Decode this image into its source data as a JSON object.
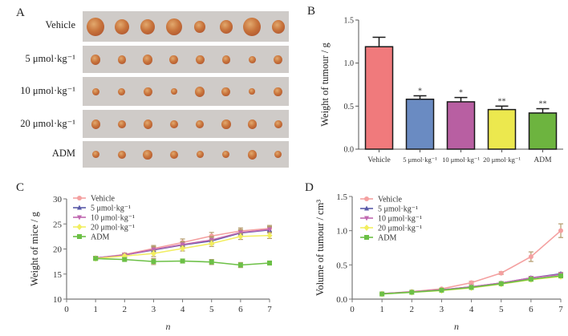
{
  "panels": {
    "A": {
      "letter": "A",
      "rows": [
        {
          "label": "Vehicle",
          "count": 8
        },
        {
          "label": "5 μmol·kg⁻¹",
          "count": 8
        },
        {
          "label": "10 μmol·kg⁻¹",
          "count": 8
        },
        {
          "label": "20 μmol·kg⁻¹",
          "count": 8
        },
        {
          "label": "ADM",
          "count": 8
        }
      ]
    },
    "B": {
      "letter": "B"
    },
    "C": {
      "letter": "C"
    },
    "D": {
      "letter": "D"
    }
  },
  "colors": {
    "vehicle": "#f07a7c",
    "dose5": "#6a8bc2",
    "dose10": "#b85fa2",
    "dose20": "#ece84e",
    "adm": "#6db43f",
    "line_vehicle": "#f4a0a0",
    "line_dose5": "#5a5aa8",
    "line_dose10": "#c068b0",
    "line_dose20": "#f2ee60",
    "line_adm": "#6cc046",
    "errbar": "#b39a6a"
  },
  "chart_data": [
    {
      "id": "B",
      "type": "bar",
      "title": "",
      "xlabel": "",
      "ylabel": "Weight of tumour / g",
      "ylim": [
        0,
        1.5
      ],
      "yticks": [
        "0.0",
        "0.5",
        "1.0",
        "1.5"
      ],
      "ytick_values": [
        0,
        0.5,
        1.0,
        1.5
      ],
      "categories": [
        "Vehicle",
        "5 μmol·kg⁻¹",
        "10 μmol·kg⁻¹",
        "20 μmol·kg⁻¹",
        "ADM"
      ],
      "values": [
        1.19,
        0.58,
        0.55,
        0.46,
        0.42
      ],
      "errors": [
        0.11,
        0.04,
        0.05,
        0.04,
        0.05
      ],
      "significance": [
        "",
        "*",
        "*",
        "**",
        "**"
      ],
      "grid": false
    },
    {
      "id": "C",
      "type": "line",
      "xlabel": "n",
      "ylabel": "Weight of mice / g",
      "xlim": [
        0,
        7
      ],
      "ylim": [
        10,
        30
      ],
      "xticks": [
        "0",
        "1",
        "2",
        "3",
        "4",
        "5",
        "6",
        "7"
      ],
      "yticks": [
        "10",
        "15",
        "20",
        "25",
        "30"
      ],
      "ytick_values": [
        10,
        15,
        20,
        25,
        30
      ],
      "x": [
        1,
        2,
        3,
        4,
        5,
        6,
        7
      ],
      "legend_position": "top-left",
      "series": [
        {
          "name": "Vehicle",
          "marker": "circle",
          "values": [
            18.2,
            18.9,
            20.1,
            21.3,
            22.6,
            23.6,
            24.1
          ],
          "errors": [
            0.3,
            0.3,
            0.6,
            0.7,
            0.7,
            0.6,
            0.6
          ]
        },
        {
          "name": "5 μmol·kg⁻¹",
          "marker": "triangle-up",
          "values": [
            18.2,
            18.8,
            19.8,
            20.8,
            21.6,
            23.2,
            23.8
          ],
          "errors": [
            0.3,
            0.3,
            0.6,
            0.6,
            0.7,
            0.6,
            0.6
          ]
        },
        {
          "name": "10 μmol·kg⁻¹",
          "marker": "triangle-down",
          "values": [
            18.2,
            18.8,
            19.9,
            20.9,
            21.8,
            23.3,
            23.9
          ],
          "errors": [
            0.3,
            0.3,
            0.6,
            0.6,
            0.7,
            0.6,
            0.6
          ]
        },
        {
          "name": "20 μmol·kg⁻¹",
          "marker": "diamond",
          "values": [
            18.1,
            18.6,
            19.1,
            20.1,
            21.1,
            22.5,
            22.7
          ],
          "errors": [
            0.3,
            0.3,
            0.6,
            0.5,
            0.6,
            0.6,
            0.6
          ]
        },
        {
          "name": "ADM",
          "marker": "square",
          "values": [
            18.1,
            17.9,
            17.5,
            17.6,
            17.4,
            16.8,
            17.2
          ],
          "errors": [
            0.3,
            0.3,
            0.6,
            0.4,
            0.5,
            0.5,
            0.4
          ]
        }
      ],
      "grid": false
    },
    {
      "id": "D",
      "type": "line",
      "xlabel": "n",
      "ylabel": "Volume of tumour / cm³",
      "xlim": [
        0,
        7
      ],
      "ylim": [
        0,
        1.5
      ],
      "xticks": [
        "0",
        "1",
        "2",
        "3",
        "4",
        "5",
        "6",
        "7"
      ],
      "yticks": [
        "0.0",
        "0.5",
        "1.0",
        "1.5"
      ],
      "ytick_values": [
        0,
        0.5,
        1.0,
        1.5
      ],
      "x": [
        1,
        2,
        3,
        4,
        5,
        6,
        7
      ],
      "legend_position": "top-left",
      "series": [
        {
          "name": "Vehicle",
          "marker": "circle",
          "values": [
            0.08,
            0.11,
            0.15,
            0.24,
            0.38,
            0.62,
            1.0
          ],
          "errors": [
            0.01,
            0.01,
            0.01,
            0.02,
            0.02,
            0.07,
            0.1
          ]
        },
        {
          "name": "5 μmol·kg⁻¹",
          "marker": "triangle-up",
          "values": [
            0.08,
            0.105,
            0.135,
            0.18,
            0.235,
            0.31,
            0.37
          ],
          "errors": [
            0.01,
            0.01,
            0.01,
            0.01,
            0.01,
            0.02,
            0.02
          ]
        },
        {
          "name": "10 μmol·kg⁻¹",
          "marker": "triangle-down",
          "values": [
            0.08,
            0.105,
            0.135,
            0.18,
            0.235,
            0.31,
            0.36
          ],
          "errors": [
            0.01,
            0.01,
            0.01,
            0.01,
            0.01,
            0.02,
            0.02
          ]
        },
        {
          "name": "20 μmol·kg⁻¹",
          "marker": "diamond",
          "values": [
            0.075,
            0.1,
            0.125,
            0.165,
            0.22,
            0.285,
            0.33
          ],
          "errors": [
            0.01,
            0.01,
            0.01,
            0.01,
            0.01,
            0.02,
            0.02
          ]
        },
        {
          "name": "ADM",
          "marker": "square",
          "values": [
            0.075,
            0.1,
            0.13,
            0.17,
            0.225,
            0.29,
            0.34
          ],
          "errors": [
            0.01,
            0.01,
            0.01,
            0.01,
            0.01,
            0.02,
            0.02
          ]
        }
      ],
      "grid": false
    }
  ]
}
